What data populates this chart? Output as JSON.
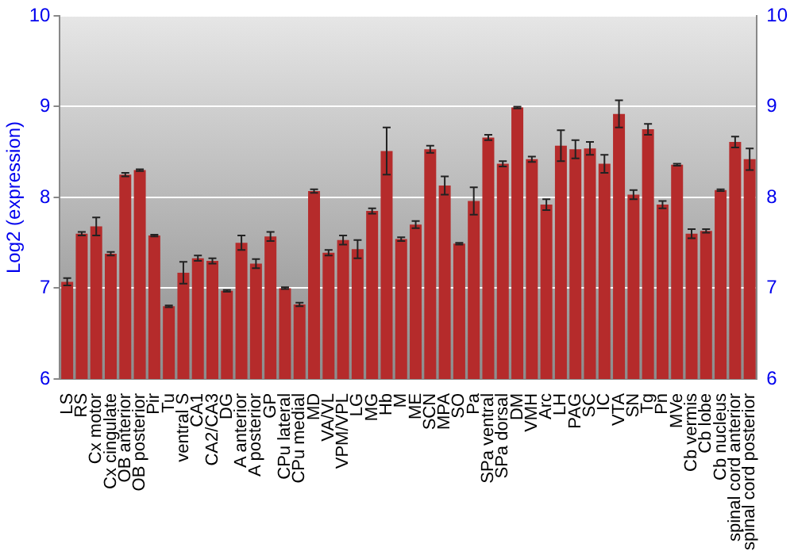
{
  "chart_data": {
    "type": "bar",
    "ylabel": "Log2 (expression)",
    "categories": [
      "LS",
      "RS",
      "Cx motor",
      "Cx cingulate",
      "OB anterior",
      "OB posterior",
      "Pir",
      "Tu",
      "ventral S",
      "CA1",
      "CA2/CA3",
      "DG",
      "A anterior",
      "A posterior",
      "GP",
      "CPu lateral",
      "CPu medial",
      "MD",
      "VA/VL",
      "VPM/VPL",
      "LG",
      "MG",
      "Hb",
      "M",
      "ME",
      "SCN",
      "MPA",
      "SO",
      "Pa",
      "SPa ventral",
      "SPa dorsal",
      "DM",
      "VMH",
      "Arc",
      "LH",
      "PAG",
      "SC",
      "IC",
      "VTA",
      "SN",
      "Tg",
      "Pn",
      "MVe",
      "Cb vermis",
      "Cb lobe",
      "Cb nucleus",
      "spinal cord anterior",
      "spinal cord posterior"
    ],
    "values": [
      7.07,
      7.6,
      7.68,
      7.38,
      8.25,
      8.3,
      7.58,
      6.8,
      7.17,
      7.33,
      7.3,
      6.97,
      7.5,
      7.27,
      7.57,
      7.0,
      6.82,
      8.07,
      7.39,
      7.53,
      7.43,
      7.85,
      8.51,
      7.54,
      7.7,
      8.53,
      8.13,
      7.49,
      7.96,
      8.66,
      8.37,
      8.99,
      8.42,
      7.92,
      8.57,
      8.53,
      8.54,
      8.37,
      8.92,
      8.03,
      8.75,
      7.92,
      8.36,
      7.6,
      7.63,
      8.08,
      8.61,
      8.42
    ],
    "errors": [
      0.04,
      0.02,
      0.1,
      0.02,
      0.02,
      0.01,
      0.01,
      0.01,
      0.12,
      0.03,
      0.03,
      0.01,
      0.08,
      0.05,
      0.05,
      0.01,
      0.02,
      0.02,
      0.03,
      0.05,
      0.1,
      0.03,
      0.26,
      0.02,
      0.04,
      0.04,
      0.1,
      0.01,
      0.15,
      0.03,
      0.03,
      0.01,
      0.03,
      0.06,
      0.17,
      0.1,
      0.07,
      0.1,
      0.15,
      0.05,
      0.06,
      0.04,
      0.01,
      0.05,
      0.02,
      0.01,
      0.06,
      0.12
    ],
    "color": "#b52b2b",
    "ylim": [
      6,
      10
    ],
    "yticks": [
      6,
      7,
      8,
      9,
      10
    ],
    "y2lim": [
      6,
      10
    ],
    "y2ticks": [
      6,
      7,
      8,
      9,
      10
    ],
    "grid": "y",
    "legend": false
  }
}
